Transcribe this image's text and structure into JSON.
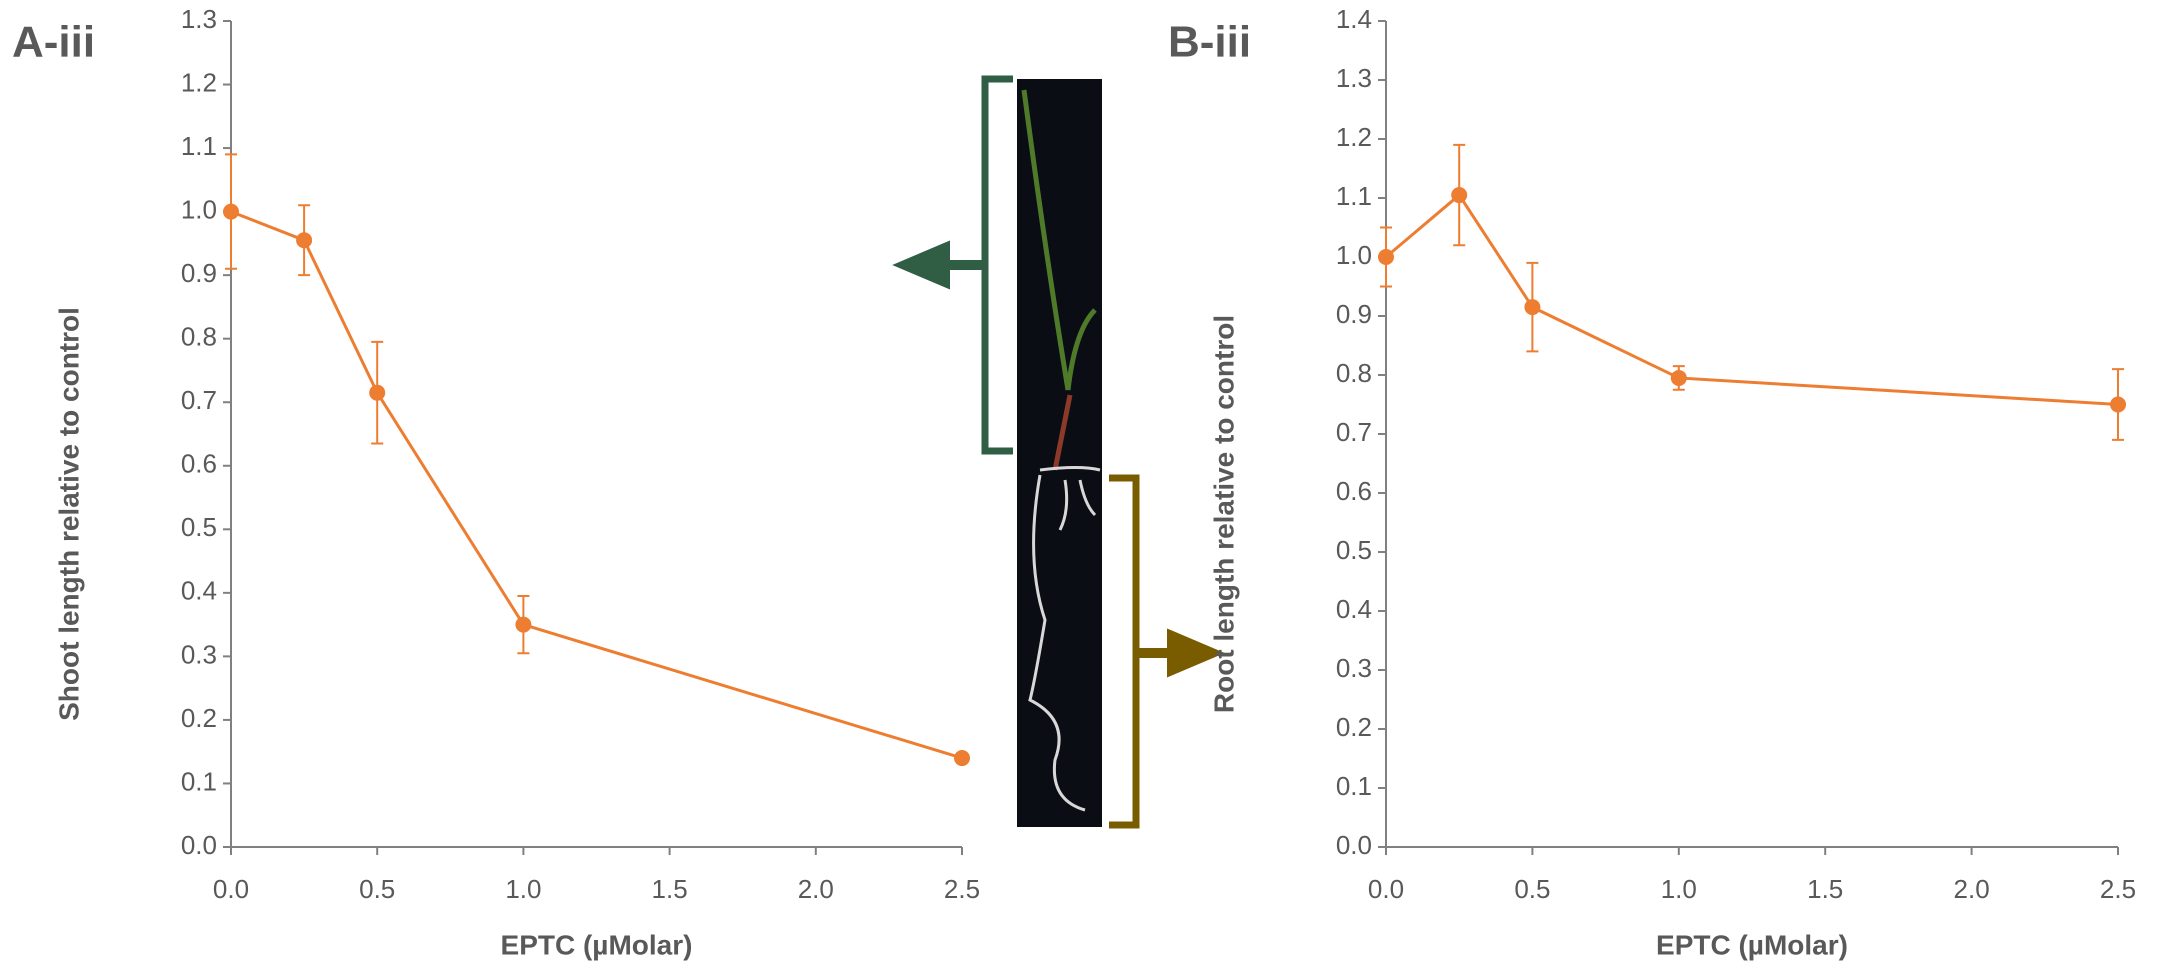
{
  "chart_data": [
    {
      "type": "line",
      "panel_label": "A-iii",
      "x_label": "EPTC (µMolar)",
      "y_label": "Shoot length relative to control",
      "x": [
        0,
        0.25,
        0.5,
        1.0,
        2.5
      ],
      "values": [
        1.0,
        0.955,
        0.715,
        0.35,
        0.14
      ],
      "errors": [
        0.09,
        0.055,
        0.08,
        0.045,
        0.005
      ],
      "color": "#ed7d31",
      "xlim": [
        0,
        2.5
      ],
      "xticks": [
        {
          "value": 0,
          "label": "0.0"
        },
        0.5,
        {
          "value": 1,
          "label": "1.0"
        },
        1.5,
        {
          "value": 2,
          "label": "2.0"
        },
        2.5
      ],
      "ylim": [
        0,
        1.3
      ],
      "yticks": [
        {
          "value": 0,
          "label": "0.0"
        },
        0.1,
        0.2,
        0.3,
        0.4,
        0.5,
        0.6,
        0.7,
        0.8,
        0.9,
        {
          "value": 1,
          "label": "1.0"
        },
        1.1,
        1.2,
        1.3
      ]
    },
    {
      "type": "line",
      "panel_label": "B-iii",
      "x_label": "EPTC (µMolar)",
      "y_label": "Root length relative to control",
      "x": [
        0,
        0.25,
        0.5,
        1.0,
        2.5
      ],
      "values": [
        1.0,
        1.105,
        0.915,
        0.795,
        0.75
      ],
      "errors": [
        0.05,
        0.085,
        0.075,
        0.02,
        0.06
      ],
      "color": "#ed7d31",
      "xlim": [
        0,
        2.5
      ],
      "xticks": [
        {
          "value": 0,
          "label": "0.0"
        },
        0.5,
        {
          "value": 1,
          "label": "1.0"
        },
        1.5,
        {
          "value": 2,
          "label": "2.0"
        },
        2.5
      ],
      "ylim": [
        0,
        1.4
      ],
      "yticks": [
        {
          "value": 0,
          "label": "0.0"
        },
        0.1,
        0.2,
        0.3,
        0.4,
        0.5,
        0.6,
        0.7,
        0.8,
        0.9,
        {
          "value": 1,
          "label": "1.0"
        },
        1.1,
        1.2,
        1.3,
        1.4
      ]
    }
  ]
}
